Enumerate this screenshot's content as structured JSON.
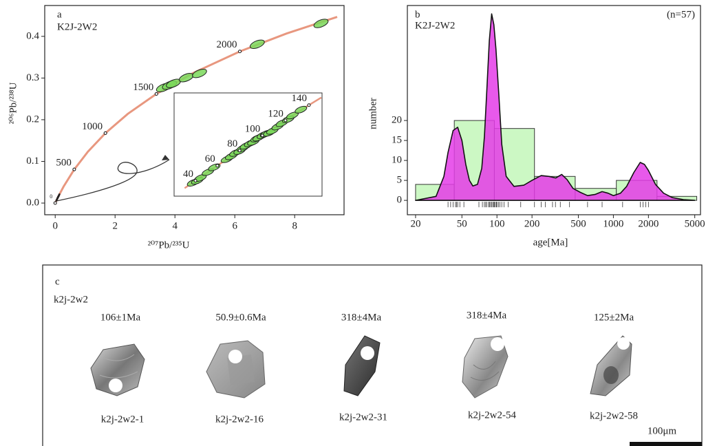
{
  "chart_data": [
    {
      "type": "concordia",
      "panel": "a",
      "sample": "K2J-2W2",
      "x_label": "²⁰⁷Pb/²³⁵U",
      "y_label": "²⁰⁶Pb/²³⁸U",
      "xlim": [
        -0.35,
        9.65
      ],
      "ylim": [
        -0.028,
        0.474
      ],
      "xticks": [
        0,
        2,
        4,
        6,
        8
      ],
      "yticks": [
        {
          "value": 0,
          "label": "0.0"
        },
        0.1,
        0.2,
        0.3,
        0.4
      ],
      "curve_color": "#e8977f",
      "concordia": {
        "x": [
          0,
          0.1035,
          0.2791,
          0.636,
          1.093,
          1.677,
          2.425,
          3.381,
          4.604,
          6.168,
          7.729,
          9.42
        ],
        "y": [
          0,
          0.01563,
          0.0395,
          0.0807,
          0.1234,
          0.1678,
          0.214,
          0.2619,
          0.3119,
          0.3638,
          0.4068,
          0.4466
        ]
      },
      "age_markers": {
        "labels": [
          0,
          500,
          1000,
          1500,
          2000
        ],
        "x": [
          0,
          0.636,
          1.677,
          3.381,
          6.168
        ],
        "y": [
          0,
          0.0807,
          0.1678,
          0.2619,
          0.3638
        ]
      },
      "ellipses": {
        "color": "#7ad85a",
        "x": [
          3.62,
          3.82,
          3.95,
          4.38,
          4.82,
          6.75,
          8.88
        ],
        "y": [
          0.277,
          0.283,
          0.287,
          0.301,
          0.311,
          0.381,
          0.431
        ]
      },
      "inset": {
        "xlim": [
          0.02,
          0.16
        ],
        "ylim": [
          0.003,
          0.0245
        ],
        "concordia": {
          "x": [
            0.02999,
            0.0402,
            0.06089,
            0.082,
            0.09272,
            0.1035,
            0.1254,
            0.1476,
            0.1593
          ],
          "y": [
            0.004665,
            0.00622,
            0.009351,
            0.01249,
            0.014058,
            0.01563,
            0.018789,
            0.02196,
            0.02354
          ]
        },
        "age_markers": {
          "labels": [
            40,
            60,
            80,
            100,
            120,
            140
          ],
          "x": [
            0.0402,
            0.0609,
            0.082,
            0.1035,
            0.1254,
            0.1476
          ],
          "y": [
            0.00622,
            0.00935,
            0.01249,
            0.01563,
            0.01879,
            0.02196
          ]
        },
        "ellipses": {
          "color": "#7ad85a",
          "x": [
            0.038,
            0.042,
            0.045,
            0.052,
            0.058,
            0.07,
            0.074,
            0.078,
            0.082,
            0.085,
            0.088,
            0.092,
            0.095,
            0.098,
            0.1,
            0.104,
            0.107,
            0.11,
            0.113,
            0.118,
            0.122,
            0.128,
            0.132,
            0.14
          ],
          "y": [
            0.0058,
            0.0062,
            0.0068,
            0.008,
            0.009,
            0.0107,
            0.0113,
            0.012,
            0.0124,
            0.013,
            0.0135,
            0.014,
            0.0143,
            0.015,
            0.0152,
            0.0157,
            0.016,
            0.0162,
            0.0166,
            0.0175,
            0.0182,
            0.019,
            0.0198,
            0.021
          ]
        }
      }
    },
    {
      "type": "histogram",
      "panel": "b",
      "sample": "K2J-2W2",
      "note": "(n=57)",
      "x_label": "age[Ma]",
      "y_label": "number",
      "log_x": true,
      "xlim": [
        17,
        5600
      ],
      "ylim": [
        -3.6,
        48.8
      ],
      "xticks": [
        20,
        50,
        100,
        200,
        500,
        1000,
        2000,
        5000
      ],
      "yticks": [
        0,
        5,
        10,
        15,
        20
      ],
      "bins": [
        20,
        43,
        95,
        210,
        470,
        1060,
        2370,
        5200
      ],
      "counts": [
        4,
        20,
        18,
        6,
        3,
        5,
        1
      ],
      "color": "#ccf8c4",
      "kde": {
        "color": "#e43ce8",
        "x": [
          20,
          30,
          35,
          38,
          42,
          46,
          50,
          54,
          58,
          62,
          68,
          74,
          78,
          82,
          86,
          90,
          94,
          98,
          104,
          110,
          120,
          140,
          170,
          200,
          240,
          280,
          320,
          360,
          400,
          450,
          520,
          600,
          700,
          800,
          900,
          1000,
          1150,
          1300,
          1500,
          1700,
          1850,
          2000,
          2300,
          2700,
          3200,
          4000,
          5000
        ],
        "y": [
          0,
          1,
          6,
          12,
          17.5,
          18.3,
          15,
          9,
          5,
          3.6,
          4,
          8,
          16,
          28,
          40,
          46.7,
          44,
          38,
          26,
          14,
          6,
          3.5,
          3.8,
          5,
          6.2,
          6,
          5.6,
          6.5,
          5.2,
          3,
          2,
          1.2,
          1.5,
          2.2,
          1.8,
          1.2,
          1.8,
          3.5,
          7,
          9.5,
          9,
          7.5,
          4,
          1.8,
          0.7,
          0.2,
          0
        ]
      },
      "rug": [
        38,
        40,
        42,
        44,
        45,
        46,
        48,
        52,
        70,
        75,
        78,
        80,
        82,
        85,
        86,
        88,
        90,
        92,
        94,
        95,
        97,
        99,
        100,
        103,
        106,
        110,
        115,
        125,
        160,
        210,
        240,
        260,
        300,
        318,
        350,
        420,
        600,
        800,
        1200,
        1700,
        1800,
        1900,
        2000
      ]
    }
  ],
  "panel_c": {
    "label": "c",
    "sample": "k2j-2w2",
    "grains": [
      {
        "age": "106±1Ma",
        "name": "k2j-2w2-1"
      },
      {
        "age": "50.9±0.6Ma",
        "name": "k2j-2w2-16"
      },
      {
        "age": "318±4Ma",
        "name": "k2j-2w2-31"
      },
      {
        "age": "318±4Ma",
        "name": "k2j-2w2-54"
      },
      {
        "age": "125±2Ma",
        "name": "k2j-2w2-58"
      }
    ],
    "scale_bar": "100μm"
  }
}
